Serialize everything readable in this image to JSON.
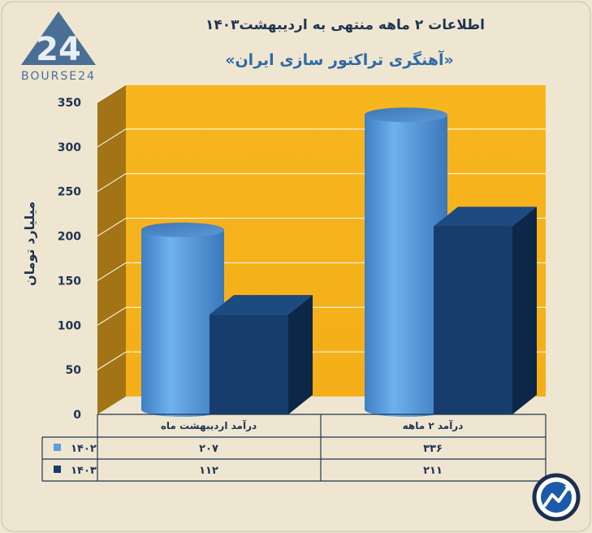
{
  "brand": {
    "logo_text": "BOURSE24"
  },
  "header": {
    "title": "اطلاعات ۲ ماهه منتهی به اردیبهشت۱۴۰۳",
    "subtitle": "«آهنگری تراکتور سازی ایران»"
  },
  "colors": {
    "background": "#efe6d2",
    "plot_back": "#f5b21c",
    "plot_side": "#a37415",
    "series_1402": "#5d9fdf",
    "series_1403": "#163d6b",
    "axis_text": "#1f3550"
  },
  "chart_data": {
    "type": "bar",
    "ylabel": "میلیارد تومان",
    "ylim": [
      0,
      350
    ],
    "yticks": [
      {
        "value": 0,
        "label": "0"
      },
      {
        "value": 50,
        "label": "50"
      },
      {
        "value": 100,
        "label": "100"
      },
      {
        "value": 150,
        "label": "150"
      },
      {
        "value": 200,
        "label": "200"
      },
      {
        "value": 250,
        "label": "250"
      },
      {
        "value": 300,
        "label": "300"
      },
      {
        "value": 350,
        "label": "350"
      }
    ],
    "grid": true,
    "categories": [
      "درآمد اردیبهشت ماه",
      "درآمد ۲ ماهه"
    ],
    "series": [
      {
        "name": "۱۴۰۲",
        "values": [
          207,
          336
        ],
        "value_labels": [
          "۲۰۷",
          "۳۳۶"
        ],
        "shape": "cylinder",
        "color": "#5d9fdf"
      },
      {
        "name": "۱۴۰۳",
        "values": [
          112,
          211
        ],
        "value_labels": [
          "۱۱۲",
          "۲۱۱"
        ],
        "shape": "box",
        "color": "#163d6b"
      }
    ]
  }
}
